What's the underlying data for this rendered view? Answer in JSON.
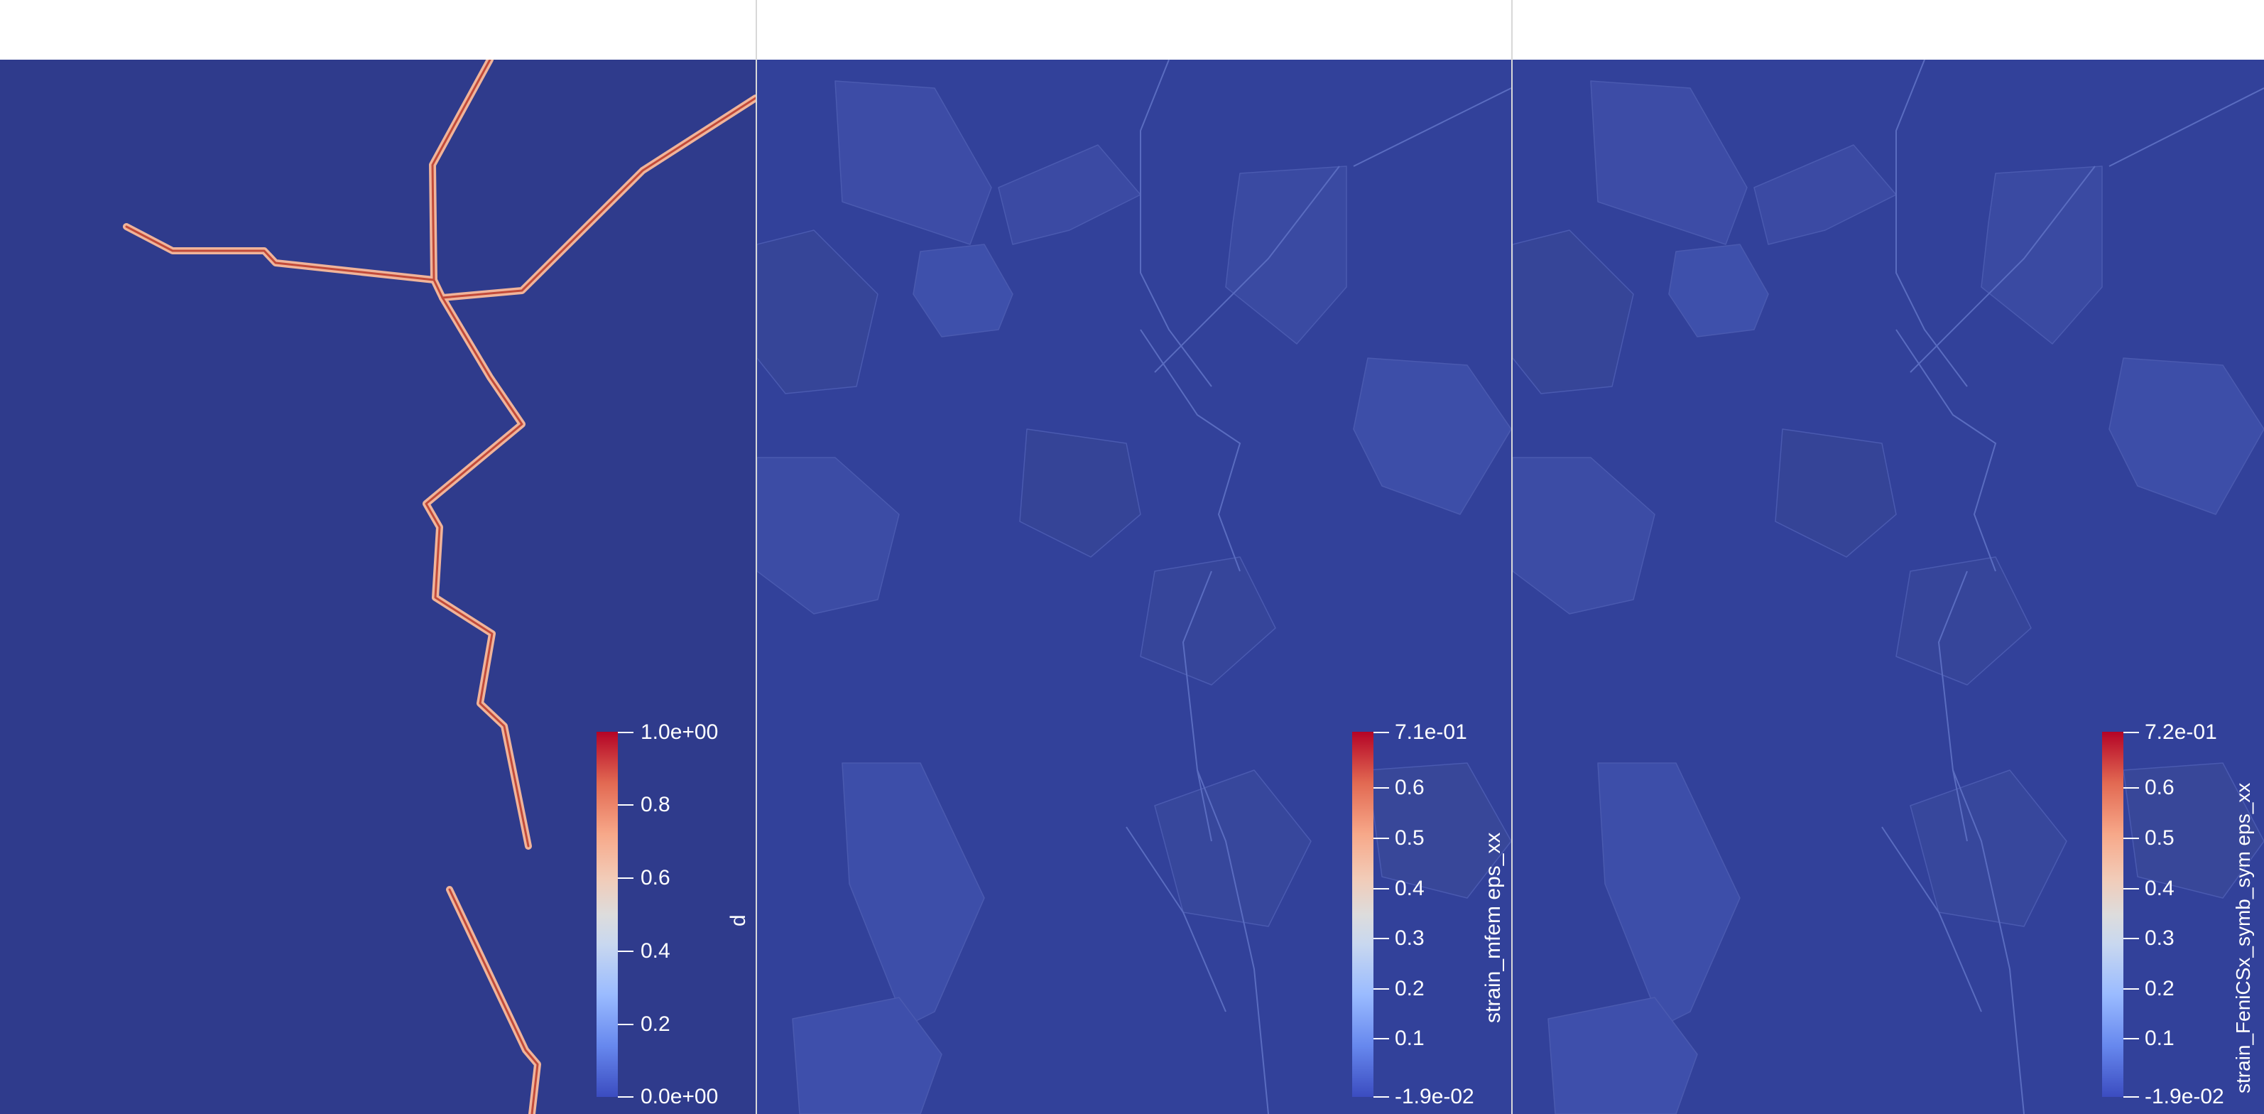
{
  "panels": [
    {
      "name": "damage-field",
      "colorbar": {
        "title": "d",
        "ticks": [
          "1.0e+00",
          "0.8",
          "0.6",
          "0.4",
          "0.2",
          "0.0e+00"
        ]
      }
    },
    {
      "name": "strain-mfem",
      "colorbar": {
        "title": "strain_mfem eps_xx",
        "ticks": [
          "7.1e-01",
          "0.6",
          "0.5",
          "0.4",
          "0.3",
          "0.2",
          "0.1",
          "-1.9e-02"
        ]
      }
    },
    {
      "name": "strain-fenicsx",
      "colorbar": {
        "title": "strain_FeniCSx_symb_sym eps_xx",
        "ticks": [
          "7.2e-01",
          "0.6",
          "0.5",
          "0.4",
          "0.3",
          "0.2",
          "0.1",
          "-1.9e-02"
        ]
      }
    }
  ],
  "colors": {
    "background": "#2f3b8c",
    "crack_edge": "#f0b49a",
    "crack_core": "#c24a3a",
    "colormap_low": "#3b4cc0",
    "colormap_mid": "#dddcdc",
    "colormap_high": "#b40426"
  }
}
